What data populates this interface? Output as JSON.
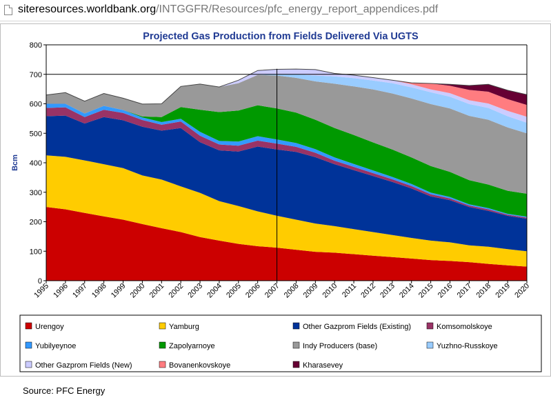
{
  "browser": {
    "url_host": "siteresources.worldbank.org",
    "url_path": "/INTGGFR/Resources/pfc_energy_report_appendices.pdf"
  },
  "source_note": "Source: PFC Energy",
  "chart_data": {
    "type": "area",
    "stacked": true,
    "title": "Projected Gas Production from Fields Delivered Via UGTS",
    "xlabel": "",
    "ylabel": "Bcm",
    "ylim": [
      0,
      800
    ],
    "yticks": [
      0,
      100,
      200,
      300,
      400,
      500,
      600,
      700,
      800
    ],
    "grid_lines": [
      700,
      800
    ],
    "vertical_marker": "2007",
    "legend_position": "bottom",
    "categories": [
      "1995",
      "1996",
      "1997",
      "1998",
      "1999",
      "2000",
      "2001",
      "2002",
      "2003",
      "2004",
      "2005",
      "2006",
      "2007",
      "2008",
      "2009",
      "2010",
      "2011",
      "2012",
      "2013",
      "2014",
      "2015",
      "2016",
      "2017",
      "2018",
      "2019",
      "2020"
    ],
    "series": [
      {
        "name": "Urengoy",
        "color": "#CC0000",
        "values": [
          250,
          242,
          230,
          218,
          207,
          192,
          178,
          165,
          148,
          136,
          125,
          117,
          112,
          105,
          98,
          95,
          90,
          85,
          80,
          75,
          70,
          67,
          63,
          57,
          52,
          48
        ]
      },
      {
        "name": "Yamburg",
        "color": "#FFCC00",
        "values": [
          175,
          178,
          178,
          177,
          175,
          165,
          165,
          155,
          150,
          134,
          128,
          118,
          108,
          102,
          96,
          90,
          85,
          80,
          75,
          70,
          66,
          63,
          57,
          58,
          55,
          52
        ]
      },
      {
        "name": "Other Gazprom Fields (Existing)",
        "color": "#003399",
        "values": [
          133,
          140,
          125,
          160,
          162,
          165,
          166,
          198,
          172,
          172,
          185,
          220,
          225,
          230,
          225,
          210,
          200,
          190,
          180,
          168,
          150,
          143,
          130,
          122,
          113,
          110
        ]
      },
      {
        "name": "Komsomolskoye",
        "color": "#993366",
        "values": [
          28,
          28,
          22,
          25,
          25,
          23,
          20,
          22,
          22,
          20,
          20,
          20,
          20,
          17,
          15,
          12,
          11,
          10,
          9,
          8,
          7,
          6,
          5,
          5,
          4,
          4
        ]
      },
      {
        "name": "Yubilyeynoe",
        "color": "#3399FF",
        "values": [
          14,
          12,
          12,
          13,
          10,
          9,
          9,
          9,
          13,
          12,
          14,
          15,
          14,
          13,
          12,
          11,
          10,
          9,
          8,
          7,
          6,
          5,
          4,
          4,
          3,
          3
        ]
      },
      {
        "name": "Zapolyarnoye",
        "color": "#009900",
        "values": [
          0,
          0,
          0,
          0,
          0,
          3,
          17,
          40,
          75,
          98,
          105,
          105,
          105,
          103,
          100,
          100,
          98,
          95,
          93,
          90,
          90,
          85,
          82,
          80,
          78,
          78
        ]
      },
      {
        "name": "Indy Producers (base)",
        "color": "#999999",
        "values": [
          30,
          38,
          42,
          42,
          40,
          42,
          45,
          70,
          87,
          85,
          93,
          103,
          112,
          118,
          130,
          150,
          165,
          180,
          190,
          200,
          210,
          215,
          218,
          220,
          215,
          205
        ]
      },
      {
        "name": "Yuzhno-Russkoye",
        "color": "#99CCFF",
        "values": [
          0,
          0,
          0,
          0,
          0,
          0,
          0,
          0,
          0,
          0,
          0,
          0,
          5,
          12,
          20,
          25,
          28,
          30,
          35,
          38,
          40,
          40,
          40,
          40,
          38,
          36
        ]
      },
      {
        "name": "Other Gazprom Fields (New)",
        "color": "#CCCCFF",
        "values": [
          0,
          0,
          0,
          0,
          0,
          0,
          0,
          0,
          0,
          0,
          10,
          15,
          16,
          18,
          20,
          10,
          10,
          10,
          10,
          10,
          10,
          12,
          13,
          15,
          18,
          20
        ]
      },
      {
        "name": "Bovanenkovskoye",
        "color": "#FF7C80",
        "values": [
          0,
          0,
          0,
          0,
          0,
          0,
          0,
          0,
          0,
          0,
          0,
          0,
          0,
          0,
          0,
          0,
          0,
          0,
          0,
          5,
          20,
          25,
          35,
          40,
          40,
          40
        ]
      },
      {
        "name": "Kharasevey",
        "color": "#660033",
        "values": [
          0,
          0,
          0,
          0,
          0,
          0,
          0,
          0,
          0,
          0,
          0,
          0,
          0,
          0,
          0,
          0,
          0,
          0,
          0,
          0,
          0,
          5,
          15,
          25,
          30,
          35
        ]
      }
    ]
  }
}
